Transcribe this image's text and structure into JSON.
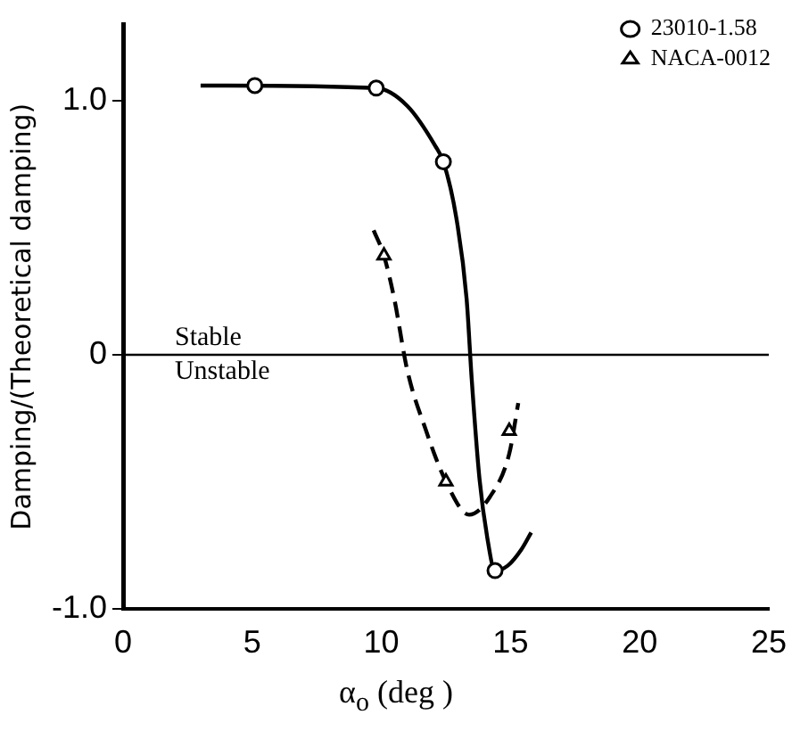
{
  "chart_data": {
    "type": "scatter",
    "xlabel": "α$_{o}$ (deg )",
    "ylabel": "Damping/(Theoretical damping)",
    "xlim": [
      0,
      25
    ],
    "xticks": [
      0,
      5,
      10,
      15,
      20,
      25
    ],
    "ylim": [
      -1,
      1.3
    ],
    "yticks": [
      {
        "value": -1,
        "label": "-1.0"
      },
      0,
      {
        "value": 1,
        "label": "1.0"
      }
    ],
    "grid": false,
    "legend": "top right",
    "series": [
      {
        "name": "23010-1.58",
        "marker": "circle",
        "color": "#000000",
        "x": [
          5.1,
          9.8,
          12.4,
          14.4
        ],
        "values": [
          1.06,
          1.05,
          0.76,
          -0.85
        ]
      },
      {
        "type": "line",
        "marker": "none",
        "line_style": "solid",
        "color": "#000000",
        "x": [
          3.0,
          9.8,
          11.0,
          12.1,
          12.4,
          12.9,
          13.3,
          13.5,
          13.8,
          14.1,
          14.4,
          14.9,
          15.4,
          15.8
        ],
        "values": [
          1.06,
          1.05,
          0.98,
          0.82,
          0.76,
          0.54,
          0.22,
          -0.1,
          -0.49,
          -0.72,
          -0.85,
          -0.83,
          -0.77,
          -0.7
        ]
      },
      {
        "name": "NACA-0012",
        "marker": "triangle",
        "color": "#000000",
        "x": [
          10.1,
          12.5,
          14.95
        ],
        "values": [
          0.39,
          -0.5,
          -0.3
        ]
      },
      {
        "type": "line",
        "marker": "none",
        "line_style": "dashed",
        "color": "#000000",
        "x": [
          9.7,
          10.1,
          10.5,
          11.0,
          11.7,
          12.5,
          13.4,
          14.2,
          14.95,
          15.3
        ],
        "values": [
          0.49,
          0.39,
          0.22,
          -0.06,
          -0.29,
          -0.5,
          -0.63,
          -0.56,
          -0.39,
          -0.19
        ]
      }
    ],
    "ref_lines": [
      {
        "axis": "y",
        "value": 0,
        "color": "#000000"
      }
    ],
    "annotations": [
      "Stable",
      "Unstable"
    ]
  }
}
